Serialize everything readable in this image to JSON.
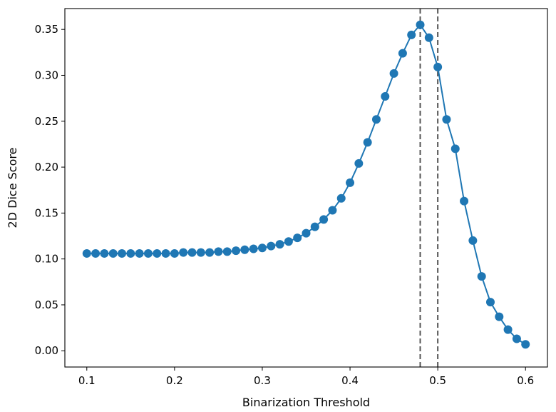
{
  "chart_data": {
    "type": "line",
    "title": "",
    "xlabel": "Binarization Threshold",
    "ylabel": "2D Dice Score",
    "xlim": [
      0.075,
      0.625
    ],
    "ylim": [
      -0.0177,
      0.3727
    ],
    "xticks": [
      0.1,
      0.2,
      0.3,
      0.4,
      0.5,
      0.6
    ],
    "xtick_labels": [
      "0.1",
      "0.2",
      "0.3",
      "0.4",
      "0.5",
      "0.6"
    ],
    "yticks": [
      0.0,
      0.05,
      0.1,
      0.15,
      0.2,
      0.25,
      0.3,
      0.35
    ],
    "ytick_labels": [
      "0.00",
      "0.05",
      "0.10",
      "0.15",
      "0.20",
      "0.25",
      "0.30",
      "0.35"
    ],
    "grid": false,
    "legend": "none",
    "line_color": "#1f77b4",
    "vline_color": "#555555",
    "vlines": [
      0.48,
      0.5
    ],
    "series": [
      {
        "x": [
          0.1,
          0.11,
          0.12,
          0.13,
          0.14,
          0.15,
          0.16,
          0.17,
          0.18,
          0.19,
          0.2,
          0.21,
          0.22,
          0.23,
          0.24,
          0.25,
          0.26,
          0.27,
          0.28,
          0.29,
          0.3,
          0.31,
          0.32,
          0.33,
          0.34,
          0.35,
          0.36,
          0.37,
          0.38,
          0.39,
          0.4,
          0.41,
          0.42,
          0.43,
          0.44,
          0.45,
          0.46,
          0.47,
          0.48,
          0.49,
          0.5,
          0.51,
          0.52,
          0.53,
          0.54,
          0.55,
          0.56,
          0.57,
          0.58,
          0.59,
          0.6
        ],
        "values": [
          0.106,
          0.106,
          0.106,
          0.106,
          0.106,
          0.106,
          0.106,
          0.106,
          0.106,
          0.106,
          0.106,
          0.107,
          0.107,
          0.107,
          0.107,
          0.108,
          0.108,
          0.109,
          0.11,
          0.111,
          0.112,
          0.114,
          0.116,
          0.119,
          0.123,
          0.128,
          0.135,
          0.143,
          0.153,
          0.166,
          0.183,
          0.204,
          0.227,
          0.252,
          0.277,
          0.302,
          0.324,
          0.344,
          0.355,
          0.341,
          0.309,
          0.252,
          0.22,
          0.163,
          0.12,
          0.081,
          0.053,
          0.037,
          0.023,
          0.013,
          0.007
        ]
      }
    ]
  }
}
